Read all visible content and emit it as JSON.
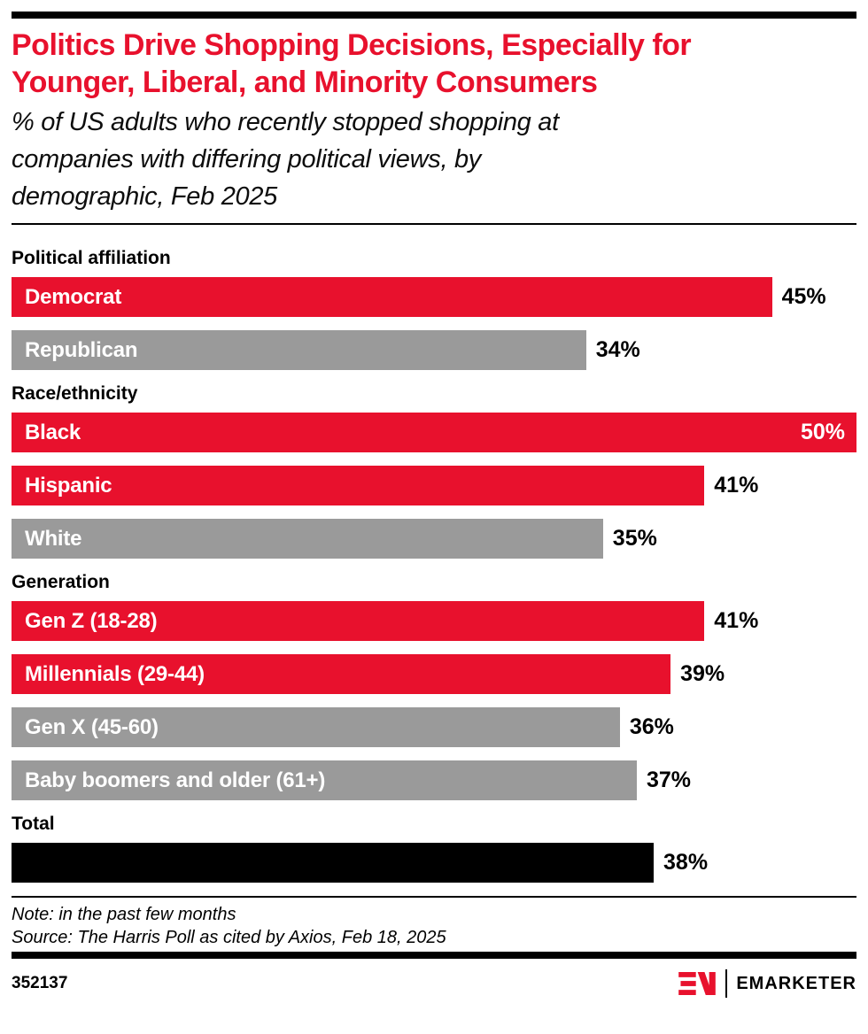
{
  "header": {
    "title_lines": [
      "Politics Drive Shopping Decisions, Especially for",
      "Younger, Liberal, and Minority Consumers"
    ],
    "subtitle_lines": [
      "% of US adults who recently stopped shopping at",
      "companies with differing political views, by",
      "demographic, Feb 2025"
    ]
  },
  "colors": {
    "red": "#e8112d",
    "gray": "#9a9a9a",
    "black": "#000000"
  },
  "chart_data": {
    "type": "bar",
    "orientation": "horizontal",
    "unit": "%",
    "xlim": [
      0,
      50
    ],
    "value_labels": "end-of-bar",
    "groups": [
      {
        "label": "Political affiliation",
        "bars": [
          {
            "label": "Democrat",
            "value": 45,
            "color": "red"
          },
          {
            "label": "Republican",
            "value": 34,
            "color": "gray"
          }
        ]
      },
      {
        "label": "Race/ethnicity",
        "bars": [
          {
            "label": "Black",
            "value": 50,
            "color": "red",
            "value_inside": true
          },
          {
            "label": "Hispanic",
            "value": 41,
            "color": "red"
          },
          {
            "label": "White",
            "value": 35,
            "color": "gray"
          }
        ]
      },
      {
        "label": "Generation",
        "bars": [
          {
            "label": "Gen Z (18-28)",
            "value": 41,
            "color": "red"
          },
          {
            "label": "Millennials (29-44)",
            "value": 39,
            "color": "red"
          },
          {
            "label": "Gen X (45-60)",
            "value": 36,
            "color": "gray"
          },
          {
            "label": "Baby boomers and older (61+)",
            "value": 37,
            "color": "gray"
          }
        ]
      },
      {
        "label": "Total",
        "bars": [
          {
            "label": "",
            "value": 38,
            "color": "black"
          }
        ]
      }
    ]
  },
  "footer": {
    "note": "Note: in the past few months",
    "source": "Source: The Harris Poll as cited by Axios, Feb 18, 2025",
    "chart_id": "352137",
    "brand": "EMARKETER"
  }
}
